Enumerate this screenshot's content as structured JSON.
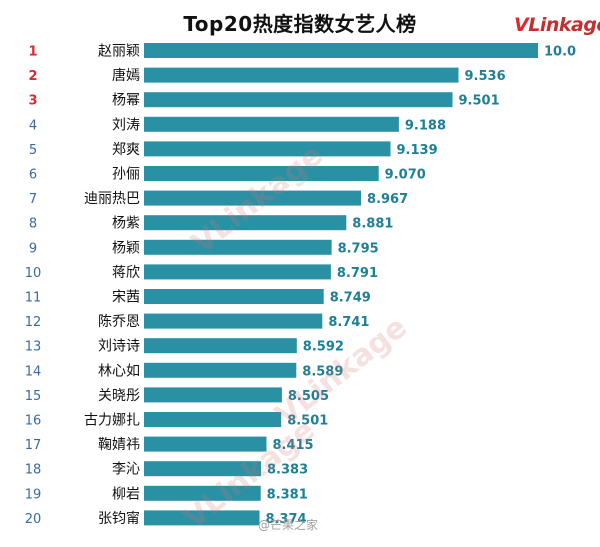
{
  "page": {
    "title": "Top20热度指数女艺人榜",
    "logo_v": "V",
    "logo_rest": "Linkage",
    "watermark": "VLinkage",
    "credit": "@芒果之家"
  },
  "colors": {
    "bar": "#2a90a4",
    "value_text": "#1f7f95",
    "rank_top": "#e0282e",
    "rank_normal": "#3a6aa0",
    "name_text": "#111111"
  },
  "chart_data": {
    "type": "bar",
    "orientation": "horizontal",
    "title": "Top20热度指数女艺人榜",
    "xlim": [
      7.7,
      10.0
    ],
    "ranks": [
      "1",
      "2",
      "3",
      "4",
      "5",
      "6",
      "7",
      "8",
      "9",
      "10",
      "11",
      "12",
      "13",
      "14",
      "15",
      "16",
      "17",
      "18",
      "19",
      "20"
    ],
    "categories": [
      "赵丽颖",
      "唐嫣",
      "杨幂",
      "刘涛",
      "郑爽",
      "孙俪",
      "迪丽热巴",
      "杨紫",
      "杨颖",
      "蒋欣",
      "宋茜",
      "陈乔恩",
      "刘诗诗",
      "林心如",
      "关晓彤",
      "古力娜扎",
      "鞠婧祎",
      "李沁",
      "柳岩",
      "张钧甯"
    ],
    "values": [
      10.0,
      9.536,
      9.501,
      9.188,
      9.139,
      9.07,
      8.967,
      8.881,
      8.795,
      8.791,
      8.749,
      8.741,
      8.592,
      8.589,
      8.505,
      8.501,
      8.415,
      8.383,
      8.381,
      8.374
    ],
    "value_labels": [
      "10.0",
      "9.536",
      "9.501",
      "9.188",
      "9.139",
      "9.070",
      "8.967",
      "8.881",
      "8.795",
      "8.791",
      "8.749",
      "8.741",
      "8.592",
      "8.589",
      "8.505",
      "8.501",
      "8.415",
      "8.383",
      "8.381",
      "8.374"
    ],
    "highlight_ranks": 3
  }
}
